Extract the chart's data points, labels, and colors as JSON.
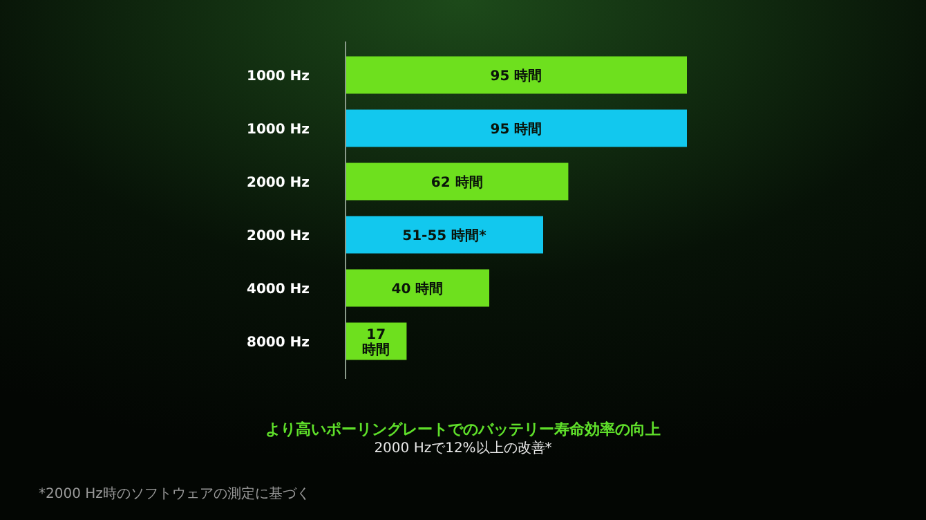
{
  "chart_data": {
    "type": "bar",
    "orientation": "horizontal",
    "title": "より高いポーリングレートでのバッテリー寿命効率の向上",
    "subtitle": "2000 Hzで12%以上の改善*",
    "categories": [
      "1000 Hz",
      "1000 Hz",
      "2000 Hz",
      "2000 Hz",
      "4000 Hz",
      "8000 Hz"
    ],
    "values": [
      95,
      95,
      62,
      55,
      40,
      17
    ],
    "value_labels": [
      "95 時間",
      "95 時間",
      "62 時間",
      "51-55 時間*",
      "40 時間",
      "17 時間"
    ],
    "colors": [
      "#6ee01e",
      "#12c8ee",
      "#6ee01e",
      "#12c8ee",
      "#6ee01e",
      "#6ee01e"
    ],
    "annotations": [
      "*2000 Hz時のソフトウェアの測定に基づく"
    ]
  }
}
